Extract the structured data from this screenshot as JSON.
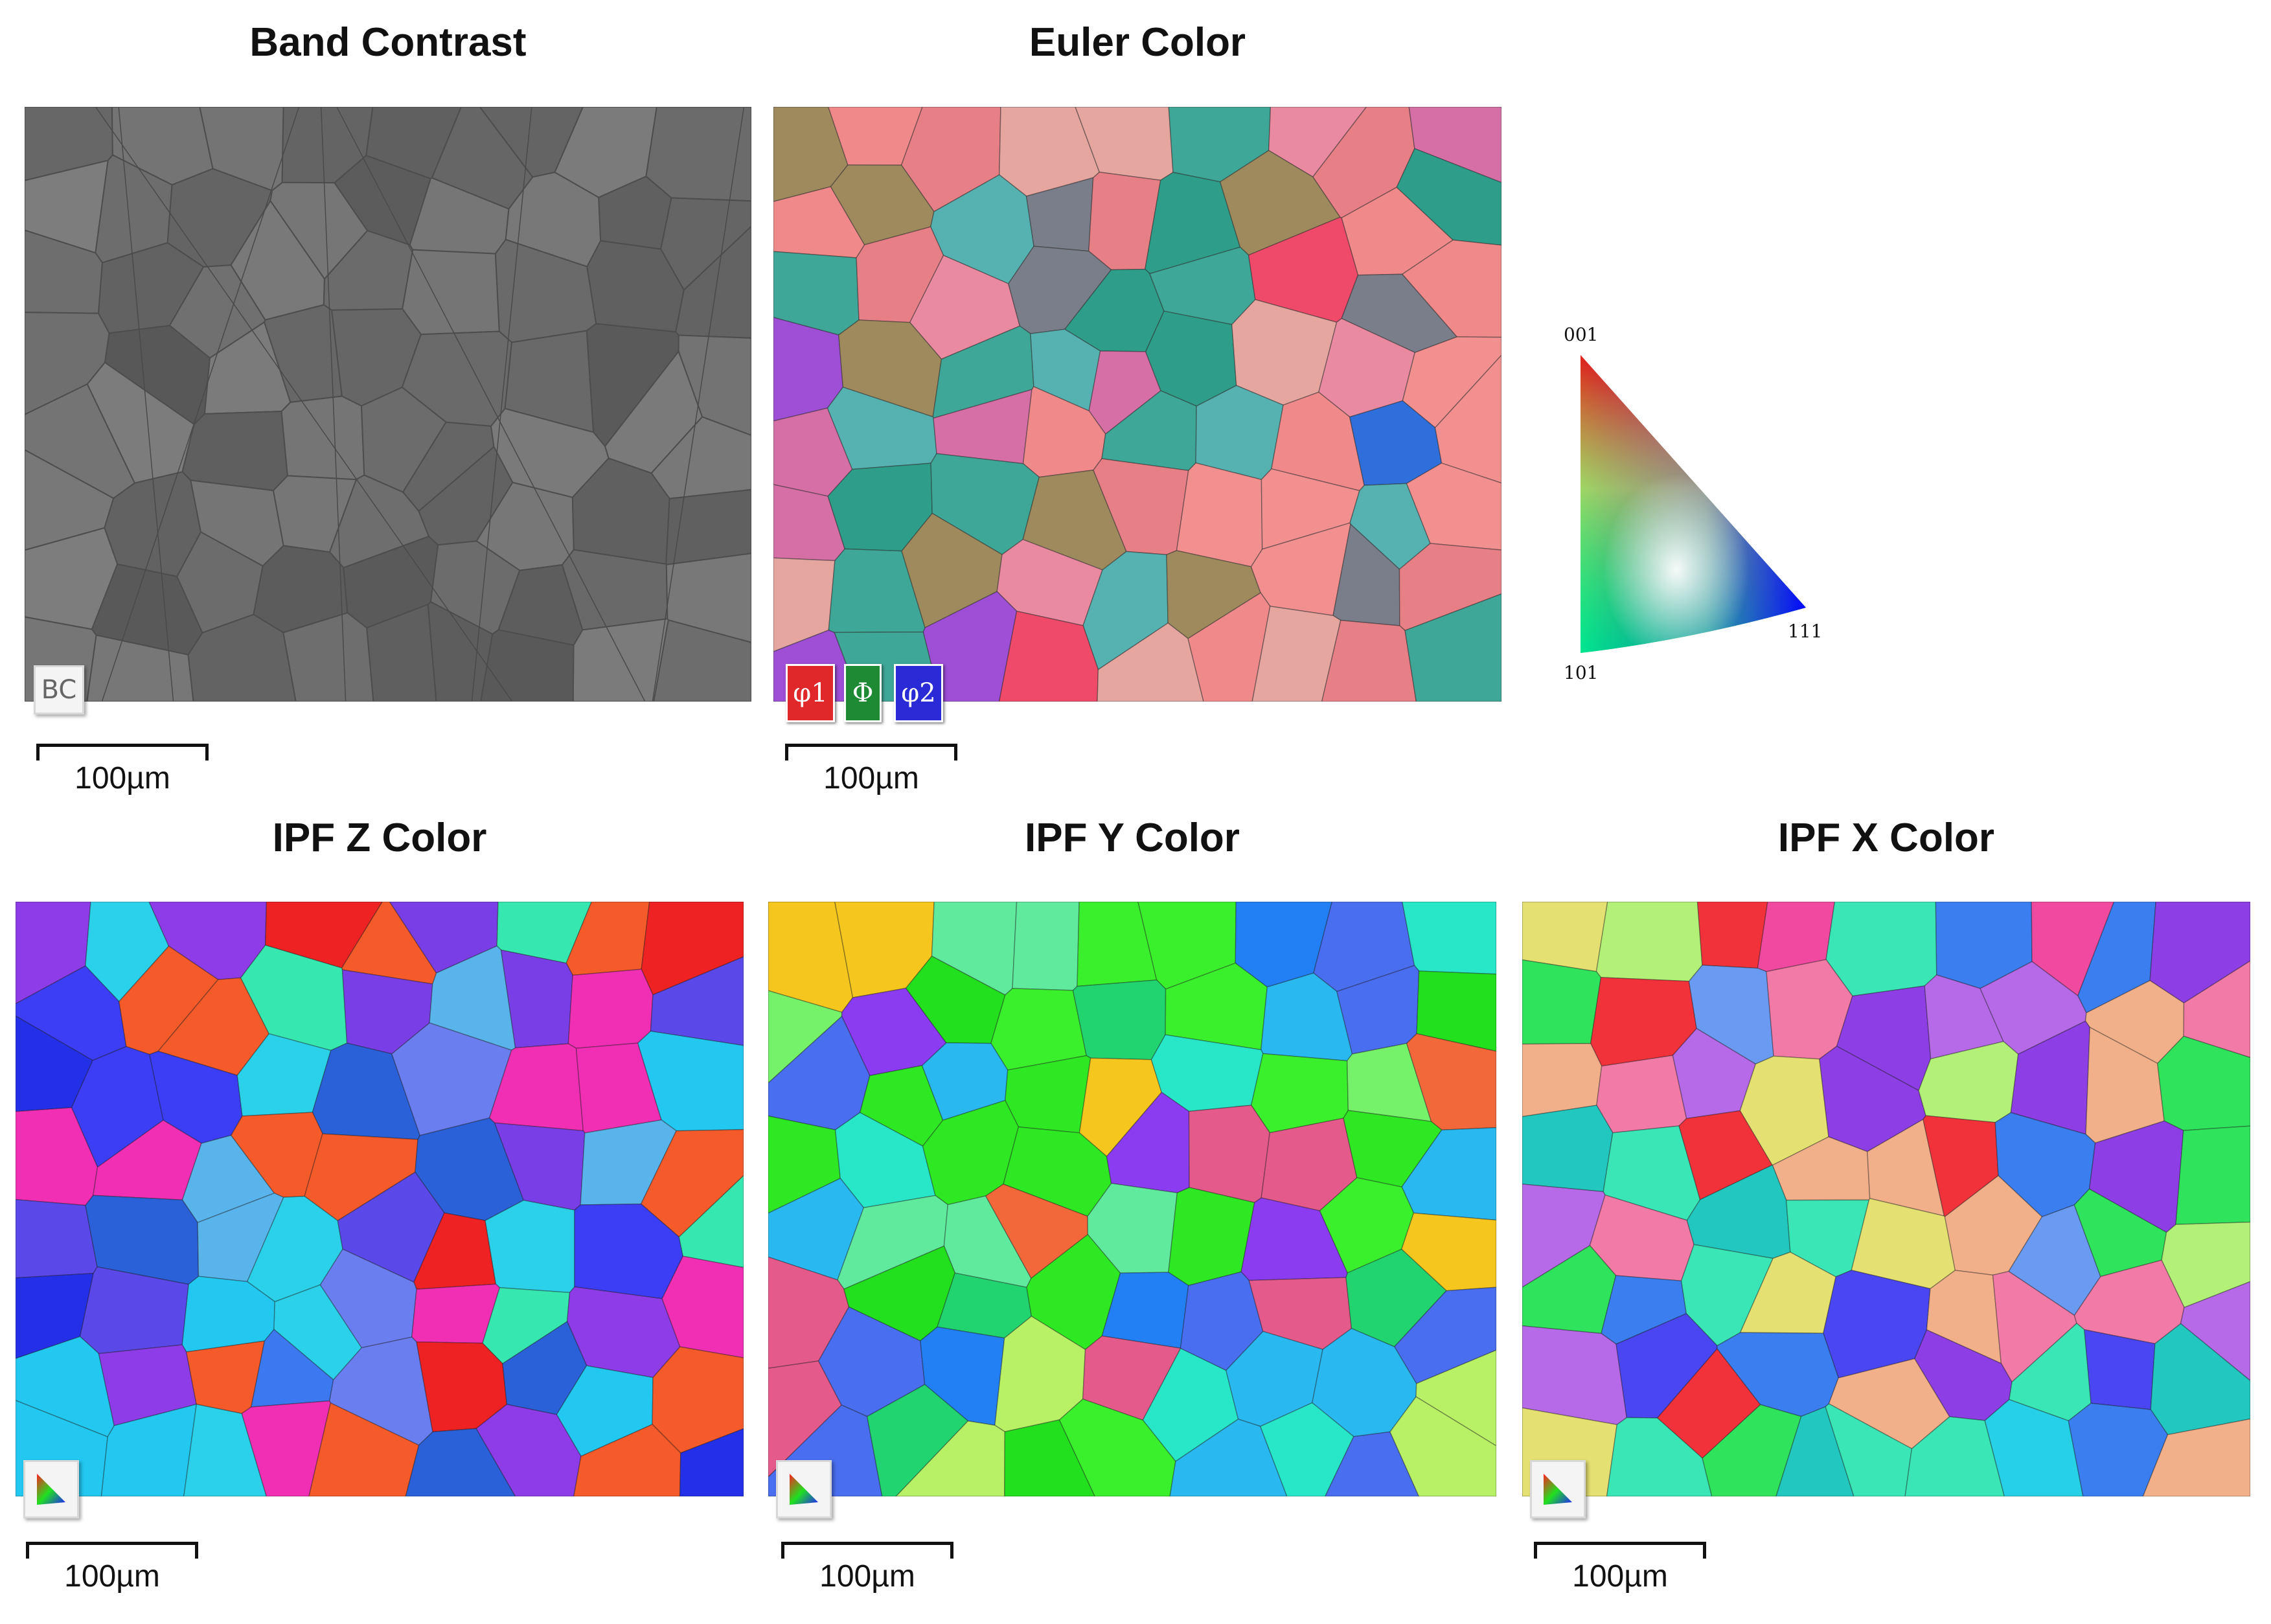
{
  "panels": {
    "band_contrast": {
      "title": "Band Contrast",
      "badge": "BC",
      "scale": "100µm"
    },
    "euler": {
      "title": "Euler Color",
      "keys": [
        "φ1",
        "Φ",
        "φ2"
      ],
      "scale": "100µm"
    },
    "ipf_z": {
      "title": "IPF Z Color",
      "scale": "100µm"
    },
    "ipf_y": {
      "title": "IPF Y Color",
      "scale": "100µm"
    },
    "ipf_x": {
      "title": "IPF X Color",
      "scale": "100µm"
    }
  },
  "legend": {
    "top": "001",
    "left": "101",
    "right": "111"
  },
  "colors": {
    "euler_key_phi1": "#e0282a",
    "euler_key_Phi": "#1f8a34",
    "euler_key_phi2": "#2a2ad6",
    "band_contrast_base": "#6e6e6e",
    "euler_palette": [
      "#f08a8a",
      "#f29090",
      "#e77f86",
      "#2e9e8a",
      "#3fa798",
      "#e98aa0",
      "#d76fa7",
      "#9f8a5d",
      "#7a7d8a",
      "#1d6d3c",
      "#f04a6a",
      "#9e4fd6",
      "#e6a6a0",
      "#56b2b0",
      "#2e6fdc"
    ],
    "ipf_z_palette": [
      "#2430e8",
      "#3b3ef4",
      "#5a48e8",
      "#7a3ee6",
      "#2ad1e8",
      "#36e8b0",
      "#ee2222",
      "#f45a2a",
      "#8d3ce8",
      "#3c78f0",
      "#5ab4ec",
      "#22c8f0",
      "#6a7ef0",
      "#f02fb4",
      "#2a60d8"
    ],
    "ipf_y_palette": [
      "#2ee824",
      "#22e01e",
      "#3af02c",
      "#76f26a",
      "#22d470",
      "#28e6c8",
      "#2280f4",
      "#8c3cf0",
      "#f2683a",
      "#f4c61e",
      "#e45a8a",
      "#4a6ef0",
      "#b8f066",
      "#2ab8f0",
      "#60ea9e"
    ],
    "ipf_x_palette": [
      "#4a46f2",
      "#3a7ef0",
      "#26d0e6",
      "#22c8c0",
      "#2fe45c",
      "#8d3ee4",
      "#f2323a",
      "#f04aa0",
      "#f2b08a",
      "#b66ae8",
      "#6a9af2",
      "#e4e072",
      "#3ae6b6",
      "#b2f078",
      "#f27aa6"
    ]
  }
}
